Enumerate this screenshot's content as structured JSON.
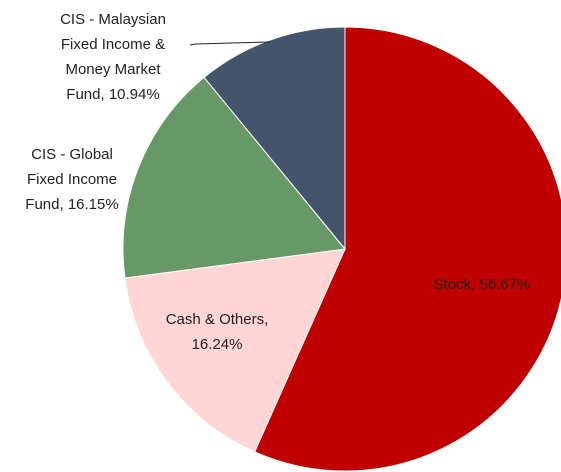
{
  "chart_data": {
    "type": "pie",
    "categories": [
      "Stock",
      "Cash & Others",
      "CIS - Global Fixed Income Fund",
      "CIS - Malaysian Fixed Income & Money Market Fund"
    ],
    "values": [
      56.67,
      16.24,
      16.15,
      10.94
    ],
    "colors": [
      "#c00000",
      "#ffd5d5",
      "#669966",
      "#44546a"
    ],
    "data_labels": [
      [
        "Stock, 56.67%"
      ],
      [
        "Cash & Others,",
        "16.24%"
      ],
      [
        "CIS - Global",
        "Fixed Income",
        "Fund, 16.15%"
      ],
      [
        "CIS - Malaysian",
        "Fixed Income &",
        "Money Market",
        "Fund, 10.94%"
      ]
    ]
  }
}
